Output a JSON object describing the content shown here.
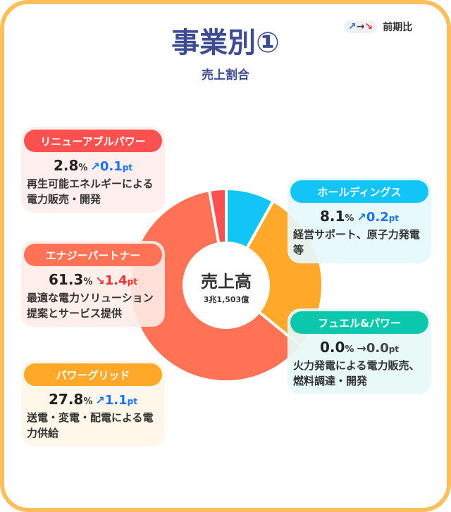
{
  "header": {
    "title": "事業別①",
    "subtitle": "売上割合",
    "legend_arrows": {
      "up": "↗",
      "flat": "→",
      "down": "↘"
    },
    "legend_label": "前期比"
  },
  "center": {
    "label": "売上高",
    "value": "3兆1,503億"
  },
  "colors": {
    "up": "#1A73F0",
    "down": "#F0302E",
    "flat": "#444444"
  },
  "segments": [
    {
      "name": "ホールディングス",
      "percent": "8.1",
      "change": "0.2",
      "unit": "%",
      "pt": "pt",
      "trend": "up",
      "arrow": "↗",
      "desc": "経営サポート、原子力発電等",
      "color": "#13C4F6",
      "bg": "rgba(230,248,254,0.92)"
    },
    {
      "name": "パワーグリッド",
      "percent": "27.8",
      "change": "1.1",
      "unit": "%",
      "pt": "pt",
      "trend": "up",
      "arrow": "↗",
      "desc": "送電・変電・配電による電力供給",
      "color": "#FFA82A",
      "bg": "rgba(255,246,232,0.92)"
    },
    {
      "name": "フュエル&パワー",
      "percent": "0.0",
      "change": "0.0",
      "unit": "%",
      "pt": "pt",
      "trend": "flat",
      "arrow": "→",
      "desc": "火力発電による電力販売、燃料調達・開発",
      "color": "#0BC8AC",
      "bg": "rgba(230,248,246,0.92)"
    },
    {
      "name": "エナジーパートナー",
      "percent": "61.3",
      "change": "1.4",
      "unit": "%",
      "pt": "pt",
      "trend": "down",
      "arrow": "↘",
      "desc": "最適な電力ソリューション提案とサービス提供",
      "color": "#FF7256",
      "bg": "rgba(255,236,232,0.9)"
    },
    {
      "name": "リニューアブルパワー",
      "percent": "2.8",
      "change": "0.1",
      "unit": "%",
      "pt": "pt",
      "trend": "up",
      "arrow": "↗",
      "desc": "再生可能エネルギーによる電力販売・開発",
      "color": "#FA5150",
      "bg": "rgba(255,237,237,0.92)"
    }
  ],
  "chart_data": {
    "type": "pie",
    "donut": true,
    "categories": [
      "ホールディングス",
      "パワーグリッド",
      "フュエル&パワー",
      "エナジーパートナー",
      "リニューアブルパワー"
    ],
    "values": [
      8.1,
      27.8,
      0.0,
      61.3,
      2.8
    ],
    "colors": [
      "#13C4F6",
      "#FFA82A",
      "#0BC8AC",
      "#FF7256",
      "#FA5150"
    ]
  }
}
